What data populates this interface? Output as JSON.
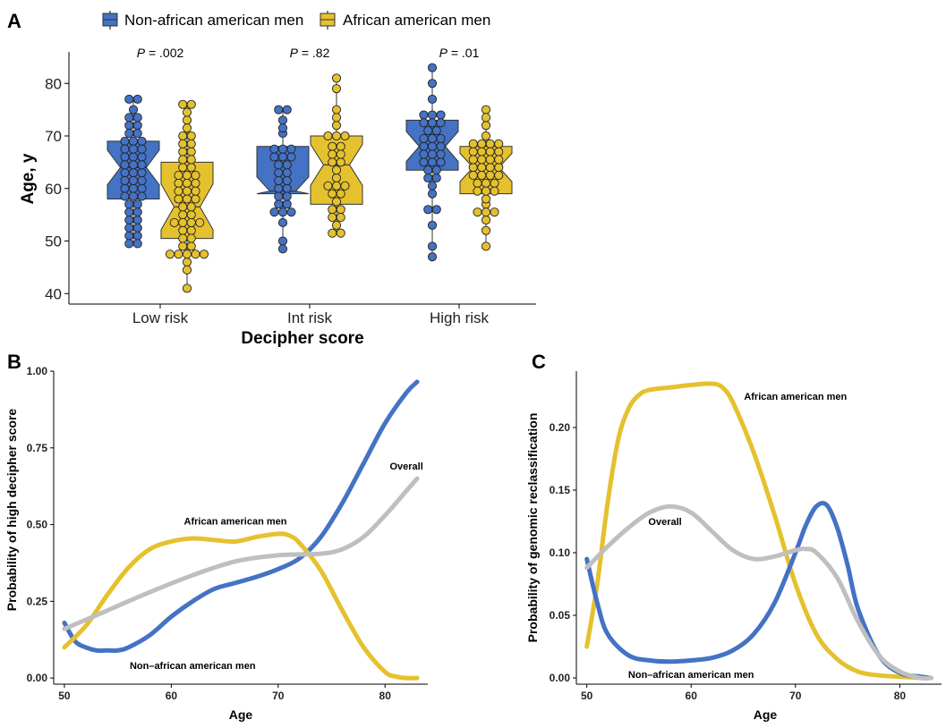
{
  "panels": {
    "a": "A",
    "b": "B",
    "c": "C"
  },
  "colors": {
    "non_african": "#4472c4",
    "african": "#e5c12e",
    "overall": "#bfbfbf"
  },
  "chart_data": [
    {
      "type": "box",
      "panel": "A",
      "xlabel": "Decipher score",
      "ylabel": "Age, y",
      "ylim": [
        38,
        86
      ],
      "yticks": [
        40,
        50,
        60,
        70,
        80
      ],
      "categories": [
        "Low risk",
        "Int risk",
        "High risk"
      ],
      "legend": {
        "position": "top",
        "entries": [
          "Non-african american men",
          "African american men"
        ]
      },
      "pvalues": [
        {
          "label": "P",
          "text": " = .002"
        },
        {
          "label": "P",
          "text": " = .82"
        },
        {
          "label": "P",
          "text": " = .01"
        }
      ],
      "series": [
        {
          "name": "Non-african american men",
          "boxes": [
            {
              "min": 49.5,
              "q1": 58,
              "median": 64,
              "q3": 69,
              "max": 77
            },
            {
              "min": 48.5,
              "q1": 59,
              "median": 59.5,
              "q3": 68,
              "max": 75
            },
            {
              "min": 47,
              "q1": 63.5,
              "median": 68,
              "q3": 73,
              "max": 83
            }
          ],
          "points": [
            [
              49.5,
              49.5,
              51,
              51,
              52.5,
              52.5,
              54,
              54,
              55.5,
              55.5,
              57,
              57,
              58.5,
              58.5,
              58.5,
              60,
              60,
              60,
              61.5,
              61.5,
              61.5,
              63,
              63,
              63,
              64.5,
              64.5,
              64.5,
              66,
              66,
              66,
              67.5,
              67.5,
              67.5,
              69,
              69,
              69,
              70.5,
              70.5,
              72,
              72,
              73.5,
              73.5,
              75,
              77,
              77
            ],
            [
              48.5,
              50,
              53.5,
              55.5,
              55.5,
              55.5,
              57,
              57,
              58.5,
              58.5,
              60,
              60,
              61.5,
              61.5,
              63,
              63,
              64.5,
              64.5,
              66,
              66,
              66,
              67.5,
              67.5,
              67.5,
              70.5,
              71.5,
              73,
              75,
              75
            ],
            [
              47,
              49,
              53,
              56,
              56,
              59,
              60.5,
              62,
              62,
              63.5,
              63.5,
              65,
              65,
              65,
              66.5,
              66.5,
              66.5,
              68,
              68,
              68,
              69.5,
              69.5,
              69.5,
              71,
              71,
              72.5,
              72.5,
              72.5,
              74,
              74,
              74,
              77,
              80,
              83
            ]
          ]
        },
        {
          "name": "African american men",
          "boxes": [
            {
              "min": 41,
              "q1": 50.5,
              "median": 56.5,
              "q3": 65,
              "max": 76
            },
            {
              "min": 51.5,
              "q1": 57,
              "median": 64.5,
              "q3": 70,
              "max": 81
            },
            {
              "min": 49,
              "q1": 59,
              "median": 64,
              "q3": 68,
              "max": 75
            }
          ],
          "points": [
            [
              41,
              44.5,
              46,
              47.5,
              47.5,
              47.5,
              47.5,
              47.5,
              49,
              49,
              50.5,
              50.5,
              52,
              52,
              53.5,
              53.5,
              53.5,
              53.5,
              55,
              55,
              56.5,
              56.5,
              58,
              58,
              58,
              59.5,
              59.5,
              59.5,
              61,
              61,
              61,
              62.5,
              62.5,
              62.5,
              64,
              64,
              65.5,
              65.5,
              67,
              67,
              68.5,
              68.5,
              70,
              70,
              71.5,
              73,
              74.5,
              76,
              76
            ],
            [
              51.5,
              51.5,
              53,
              54.5,
              54.5,
              56,
              56,
              57.5,
              59,
              59,
              60.5,
              60.5,
              60.5,
              62,
              63.5,
              65,
              65,
              66.5,
              66.5,
              68,
              68,
              70,
              70,
              70,
              72,
              73.5,
              75,
              79,
              81
            ],
            [
              49,
              52,
              54,
              55.5,
              55.5,
              55.5,
              57,
              58,
              59.5,
              59.5,
              59.5,
              61,
              61,
              61,
              62.5,
              62.5,
              62.5,
              62.5,
              64,
              64,
              64,
              64,
              65.5,
              65.5,
              65.5,
              65.5,
              67,
              67,
              67,
              67,
              68.5,
              68.5,
              68.5,
              68.5,
              70,
              72,
              73.5,
              75
            ]
          ]
        }
      ]
    },
    {
      "type": "line",
      "panel": "B",
      "xlabel": "Age",
      "ylabel": "Probability of high decipher score",
      "xlim": [
        49,
        84
      ],
      "ylim": [
        -0.02,
        1.0
      ],
      "xticks": [
        50,
        60,
        70,
        80
      ],
      "yticks": [
        0,
        0.25,
        0.5,
        0.75,
        1.0
      ],
      "ytick_labels": [
        "0.00",
        "0.25",
        "0.50",
        "0.75",
        "1.00"
      ],
      "series": [
        {
          "name": "Non–african american men",
          "color": "#4472c4",
          "x": [
            50,
            51,
            52,
            53,
            54,
            55,
            56,
            58,
            60,
            62,
            64,
            66,
            68,
            70,
            72,
            74,
            76,
            78,
            80,
            82,
            83
          ],
          "y": [
            0.18,
            0.12,
            0.1,
            0.09,
            0.09,
            0.09,
            0.1,
            0.14,
            0.2,
            0.25,
            0.29,
            0.31,
            0.33,
            0.355,
            0.39,
            0.46,
            0.57,
            0.7,
            0.83,
            0.93,
            0.965
          ]
        },
        {
          "name": "African american men",
          "color": "#e5c12e",
          "x": [
            50,
            52,
            54,
            56,
            58,
            60,
            62,
            64,
            66,
            68,
            70,
            71,
            72,
            74,
            76,
            78,
            80,
            81,
            82,
            83
          ],
          "y": [
            0.1,
            0.17,
            0.27,
            0.36,
            0.42,
            0.445,
            0.455,
            0.45,
            0.445,
            0.46,
            0.47,
            0.465,
            0.44,
            0.35,
            0.22,
            0.1,
            0.02,
            0.005,
            0.0,
            0.0
          ]
        },
        {
          "name": "Overall",
          "color": "#bfbfbf",
          "x": [
            50,
            54,
            58,
            62,
            66,
            70,
            74,
            76,
            78,
            80,
            82,
            83
          ],
          "y": [
            0.16,
            0.22,
            0.28,
            0.335,
            0.38,
            0.4,
            0.405,
            0.42,
            0.46,
            0.53,
            0.61,
            0.65
          ]
        }
      ],
      "annotations": [
        {
          "text": "African american men",
          "x": 66,
          "y": 0.5
        },
        {
          "text": "Non–african american men",
          "x": 62,
          "y": 0.03
        },
        {
          "text": "Overall",
          "x": 82,
          "y": 0.68
        }
      ]
    },
    {
      "type": "line",
      "panel": "C",
      "xlabel": "Age",
      "ylabel": "Probability of genomic reclassification",
      "xlim": [
        49,
        84
      ],
      "ylim": [
        -0.005,
        0.245
      ],
      "xticks": [
        50,
        60,
        70,
        80
      ],
      "yticks": [
        0,
        0.05,
        0.1,
        0.15,
        0.2
      ],
      "ytick_labels": [
        "0.00",
        "0.05",
        "0.10",
        "0.15",
        "0.20"
      ],
      "series": [
        {
          "name": "African american men",
          "color": "#e5c12e",
          "x": [
            50,
            51,
            52,
            53,
            54,
            55,
            56,
            58,
            60,
            62,
            63,
            64,
            66,
            68,
            70,
            72,
            74,
            76,
            78,
            80,
            82,
            83
          ],
          "y": [
            0.025,
            0.075,
            0.14,
            0.19,
            0.215,
            0.226,
            0.23,
            0.232,
            0.234,
            0.235,
            0.232,
            0.22,
            0.18,
            0.13,
            0.075,
            0.035,
            0.015,
            0.005,
            0.002,
            0.001,
            0.0,
            0.0
          ]
        },
        {
          "name": "Non–african american men",
          "color": "#4472c4",
          "x": [
            50,
            51,
            52,
            54,
            56,
            58,
            60,
            62,
            64,
            66,
            68,
            70,
            71,
            72,
            73,
            74,
            75,
            76,
            78,
            80,
            82,
            83
          ],
          "y": [
            0.095,
            0.06,
            0.035,
            0.018,
            0.014,
            0.013,
            0.014,
            0.016,
            0.022,
            0.035,
            0.06,
            0.1,
            0.122,
            0.137,
            0.138,
            0.12,
            0.09,
            0.055,
            0.018,
            0.004,
            0.001,
            0.0
          ]
        },
        {
          "name": "Overall",
          "color": "#bfbfbf",
          "x": [
            50,
            52,
            54,
            56,
            58,
            60,
            62,
            64,
            66,
            68,
            70,
            71,
            72,
            74,
            76,
            78,
            80,
            82,
            83
          ],
          "y": [
            0.088,
            0.105,
            0.12,
            0.132,
            0.137,
            0.132,
            0.117,
            0.102,
            0.095,
            0.097,
            0.102,
            0.103,
            0.1,
            0.08,
            0.045,
            0.018,
            0.005,
            0.0,
            0.0
          ]
        }
      ],
      "annotations": [
        {
          "text": "African american men",
          "x": 70,
          "y": 0.222
        },
        {
          "text": "Overall",
          "x": 57.5,
          "y": 0.122
        },
        {
          "text": "Non–african american men",
          "x": 60,
          "y": 0.0
        }
      ]
    }
  ]
}
